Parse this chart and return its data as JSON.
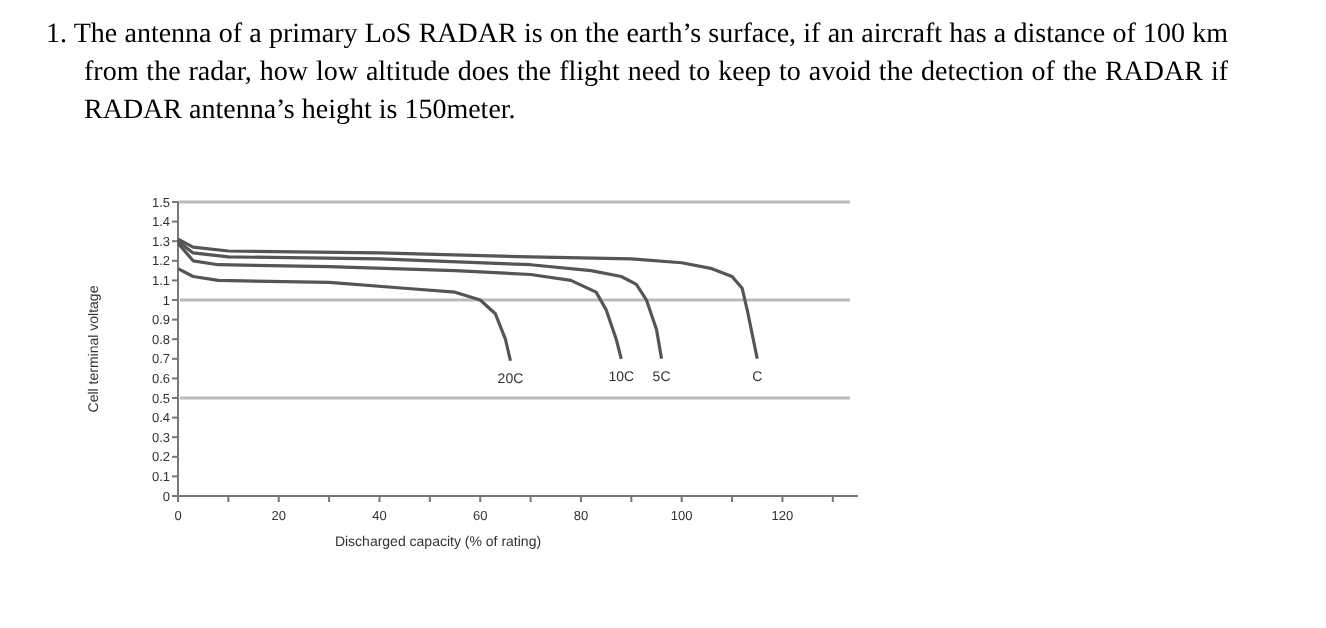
{
  "chart_data": {
    "type": "line",
    "xlabel": "Discharged capacity (% of rating)",
    "ylabel": "Cell terminal voltage",
    "annotations": [
      "1. The antenna of a primary LoS RADAR is on the earth’s surface, if an aircraft has a distance of 100 km from the radar, how low altitude does the flight need to keep to avoid the detection of the RADAR if RADAR antenna’s height is 150meter."
    ],
    "xlim": [
      0,
      135
    ],
    "xticks": [
      0,
      {
        "value": 10,
        "label": null
      },
      20,
      {
        "value": 30,
        "label": null
      },
      40,
      {
        "value": 50,
        "label": null
      },
      60,
      {
        "value": 70,
        "label": null
      },
      80,
      {
        "value": 90,
        "label": null
      },
      100,
      {
        "value": 110,
        "label": null
      },
      120,
      {
        "value": 130,
        "label": null
      }
    ],
    "ylim": [
      0,
      1.5
    ],
    "yticks": [
      0,
      0.1,
      0.2,
      0.3,
      0.4,
      0.5,
      0.6,
      0.7,
      0.8,
      0.9,
      1,
      1.1,
      1.2,
      1.3,
      1.4,
      1.5
    ],
    "ref_lines": [
      {
        "axis": "y",
        "value": 0.5,
        "color": "#bbbbbb"
      },
      {
        "axis": "y",
        "value": 1,
        "color": "#bbbbbb"
      }
    ],
    "marker": "none",
    "line_style": "solid",
    "legend": false,
    "series": [
      {
        "name": "20C",
        "color": "#555555",
        "x": [
          0,
          3,
          8,
          30,
          45,
          55,
          60,
          63,
          65,
          66
        ],
        "values": [
          1.16,
          1.12,
          1.1,
          1.09,
          1.06,
          1.04,
          1.0,
          0.93,
          0.8,
          0.69
        ]
      },
      {
        "name": "10C",
        "color": "#555555",
        "x": [
          0,
          3,
          8,
          30,
          55,
          70,
          78,
          83,
          85,
          87,
          88
        ],
        "values": [
          1.29,
          1.2,
          1.18,
          1.17,
          1.15,
          1.13,
          1.1,
          1.04,
          0.95,
          0.8,
          0.7
        ]
      },
      {
        "name": "5C",
        "color": "#555555",
        "x": [
          0,
          3,
          10,
          40,
          70,
          82,
          88,
          91,
          93,
          95,
          96
        ],
        "values": [
          1.3,
          1.24,
          1.22,
          1.21,
          1.18,
          1.15,
          1.12,
          1.08,
          1.0,
          0.85,
          0.7
        ]
      },
      {
        "name": "C",
        "color": "#555555",
        "x": [
          0,
          3,
          10,
          40,
          70,
          90,
          100,
          106,
          110,
          112,
          113,
          115
        ],
        "values": [
          1.31,
          1.27,
          1.25,
          1.24,
          1.22,
          1.21,
          1.19,
          1.16,
          1.12,
          1.06,
          0.95,
          0.7
        ]
      }
    ]
  }
}
